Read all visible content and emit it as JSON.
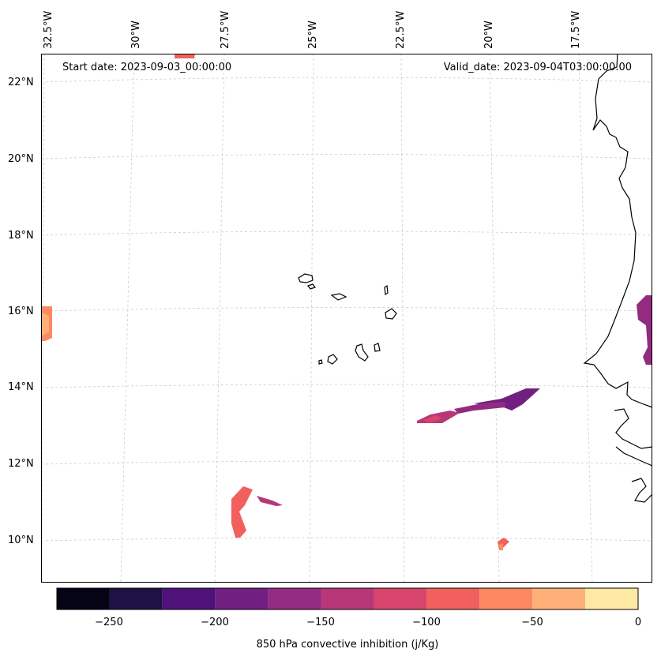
{
  "map": {
    "start_date": "Start date: 2023-09-03_00:00:00",
    "valid_date": "Valid_date: 2023-09-04T03:00:00.00",
    "lon_labels": [
      "32.5°W",
      "30°W",
      "27.5°W",
      "25°W",
      "22.5°W",
      "20°W",
      "17.5°W"
    ],
    "lat_labels": [
      "22°N",
      "20°N",
      "18°N",
      "16°N",
      "14°N",
      "12°N",
      "10°N"
    ],
    "variable": "850 hPa convective inhibition",
    "units": "j/Kg"
  },
  "colorbar": {
    "label": "850 hPa convective inhibition (j/Kg)",
    "ticks": [
      "−250",
      "−200",
      "−150",
      "−100",
      "−50",
      "0"
    ],
    "levels": [
      -275,
      -250,
      -225,
      -200,
      -175,
      -150,
      -125,
      -100,
      -75,
      -50,
      -25,
      0
    ],
    "colors": [
      "#050417",
      "#1f1146",
      "#4f127b",
      "#711f81",
      "#932b80",
      "#b73779",
      "#d8456c",
      "#f1605d",
      "#fc8961",
      "#feb078",
      "#fde8a4"
    ]
  }
}
